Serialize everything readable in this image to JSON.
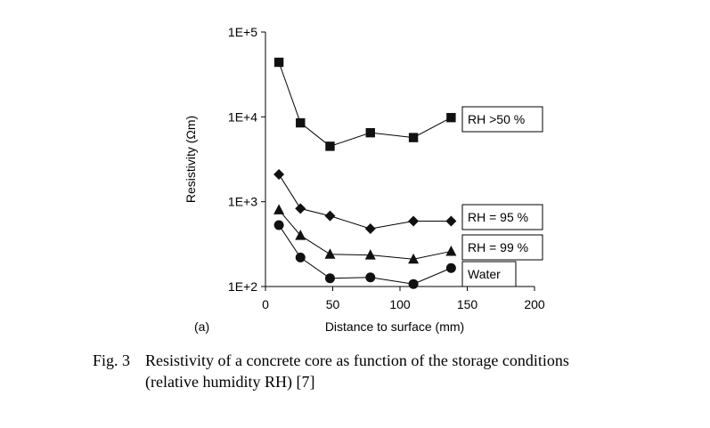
{
  "panel_label": "(a)",
  "caption": {
    "number": "Fig. 3",
    "line1": "Resistivity of a concrete core as function of the storage conditions",
    "line2": "(relative humidity RH) [7]"
  },
  "chart_data": {
    "type": "line",
    "title": "",
    "xlabel": "Distance to surface (mm)",
    "ylabel": "Resistivity (Ωm)",
    "xlim": [
      0,
      200
    ],
    "ylim": [
      100,
      100000
    ],
    "yscale": "log",
    "xticks": [
      0,
      50,
      100,
      150,
      200
    ],
    "xtick_labels": [
      "0",
      "50",
      "100",
      "150",
      "200"
    ],
    "yticks": [
      100,
      1000,
      10000,
      100000
    ],
    "ytick_labels": [
      "1E+2",
      "1E+3",
      "1E+4",
      "1E+5"
    ],
    "grid": false,
    "legend": "series labels in boxes at right end of lines",
    "series": [
      {
        "name": "RH >50 %",
        "marker": "square",
        "x": [
          10,
          26,
          48,
          78,
          110,
          138
        ],
        "y": [
          44000,
          8500,
          4500,
          6500,
          5700,
          9800
        ]
      },
      {
        "name": "RH = 95 %",
        "marker": "diamond",
        "x": [
          10,
          26,
          48,
          78,
          110,
          138
        ],
        "y": [
          2100,
          830,
          680,
          480,
          590,
          590
        ]
      },
      {
        "name": "RH = 99 %",
        "marker": "triangle",
        "x": [
          10,
          26,
          48,
          78,
          110,
          138
        ],
        "y": [
          800,
          400,
          240,
          235,
          210,
          260
        ]
      },
      {
        "name": "Water",
        "marker": "circle",
        "x": [
          10,
          26,
          48,
          78,
          110,
          138
        ],
        "y": [
          530,
          220,
          125,
          128,
          107,
          165
        ]
      }
    ]
  }
}
